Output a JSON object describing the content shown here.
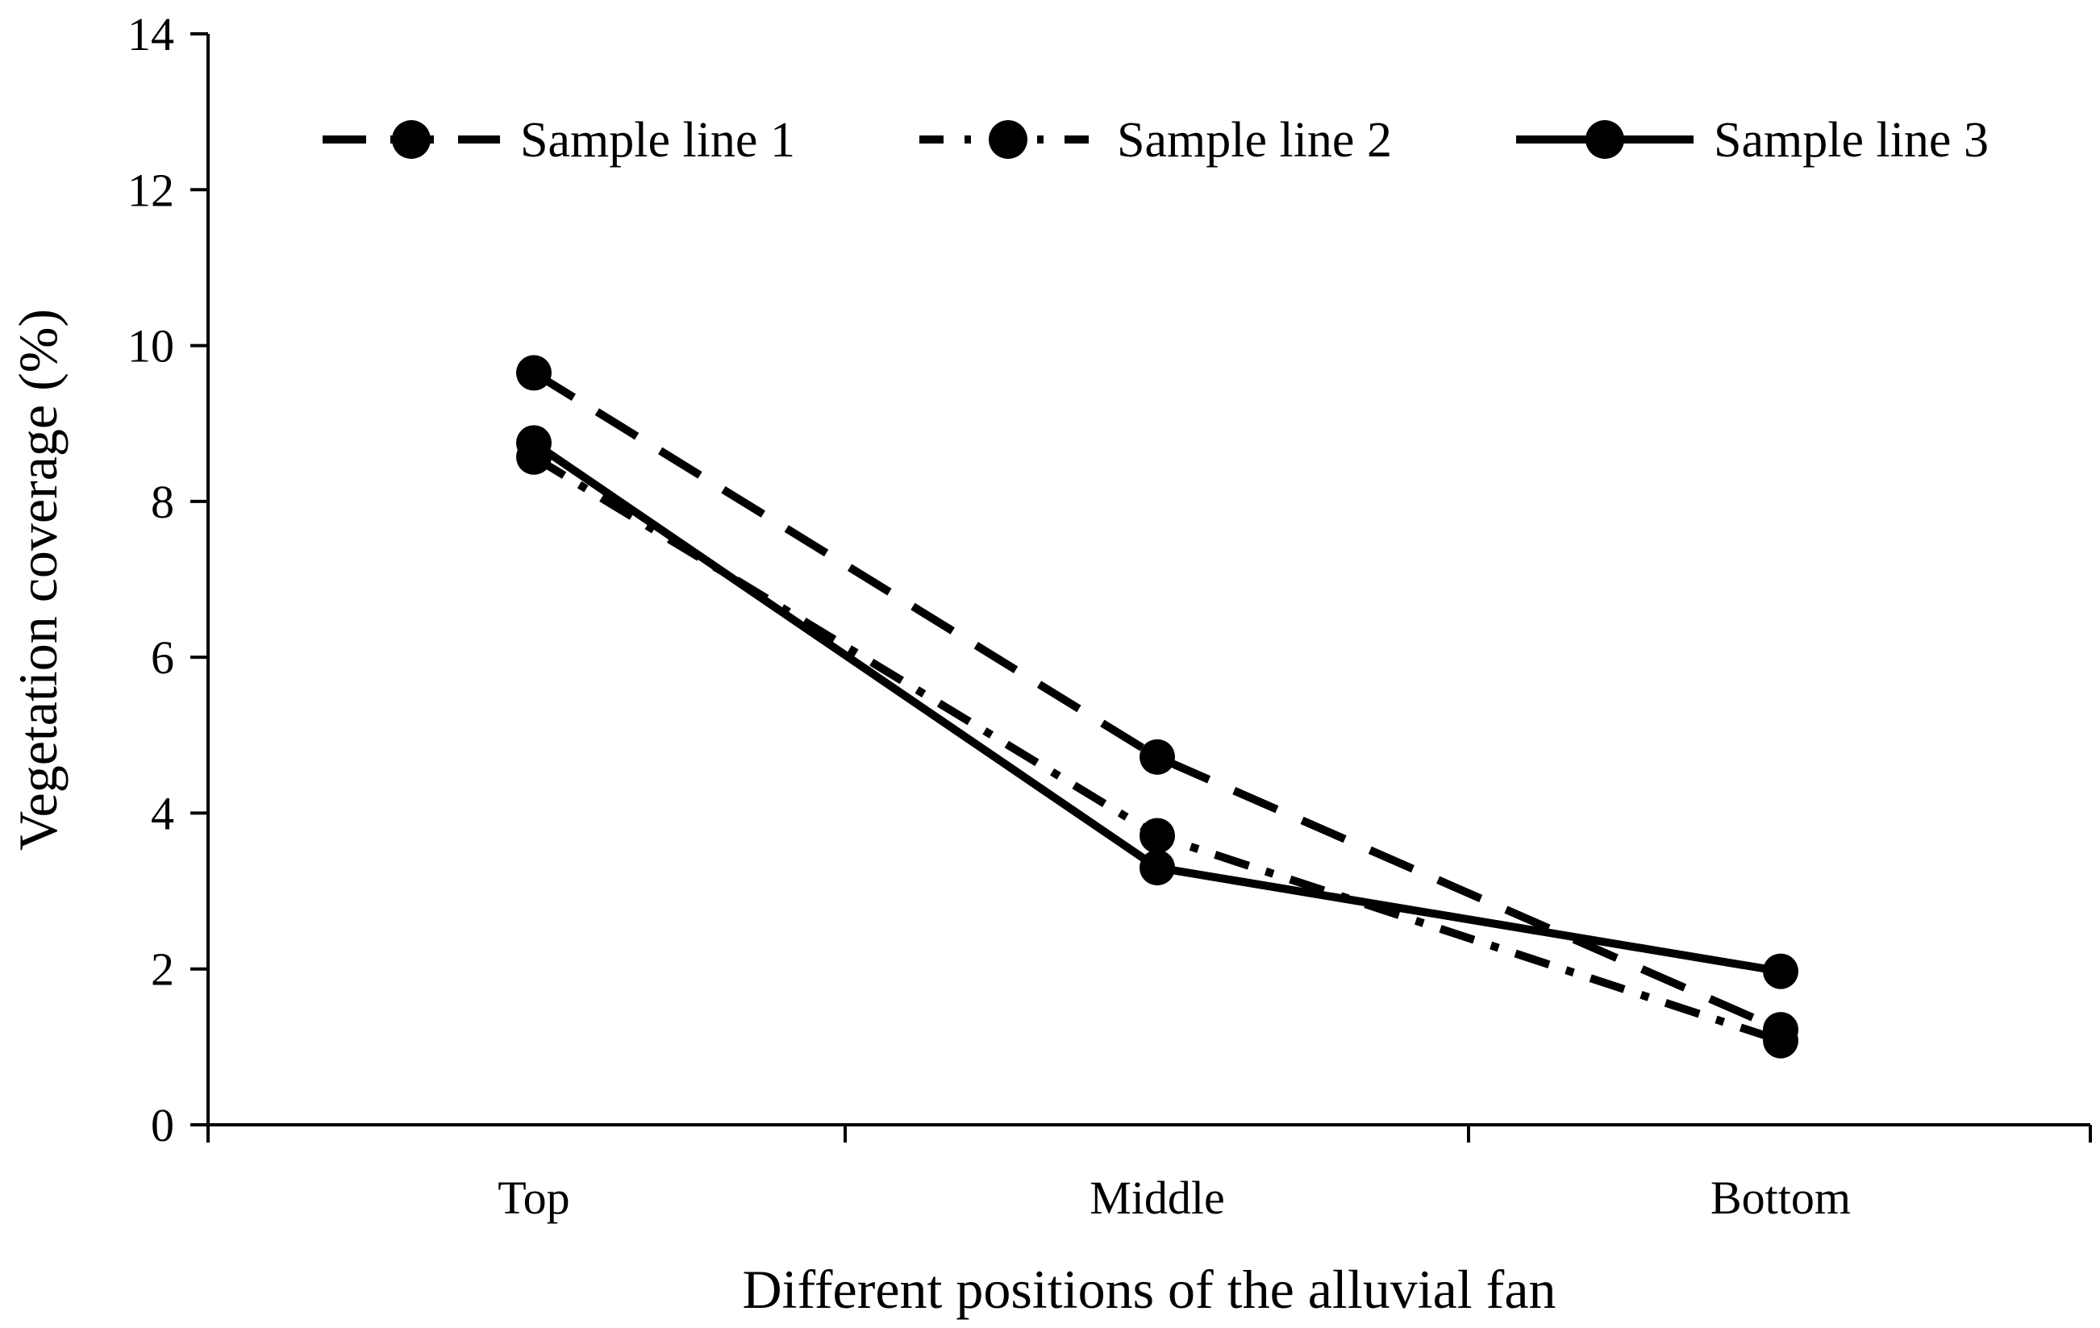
{
  "chart_data": {
    "type": "line",
    "title": "",
    "xlabel": "Different positions of the alluvial fan",
    "ylabel": "Vegetation coverage (%)",
    "categories": [
      "Top",
      "Middle",
      "Bottom"
    ],
    "ylim": [
      0,
      14
    ],
    "yticks": [
      "0",
      "2",
      "4",
      "6",
      "8",
      "10",
      "12",
      "14"
    ],
    "grid": false,
    "legend_position": "top",
    "series": [
      {
        "name": "Sample line 1",
        "style": "dashed",
        "values": [
          9.65,
          4.72,
          1.22
        ]
      },
      {
        "name": "Sample line 2",
        "style": "dash-dot",
        "values": [
          8.57,
          3.71,
          1.08
        ]
      },
      {
        "name": "Sample line 3",
        "style": "solid",
        "values": [
          8.75,
          3.3,
          1.97
        ]
      }
    ],
    "colors": {
      "line": "#000000",
      "marker": "#000000"
    }
  }
}
